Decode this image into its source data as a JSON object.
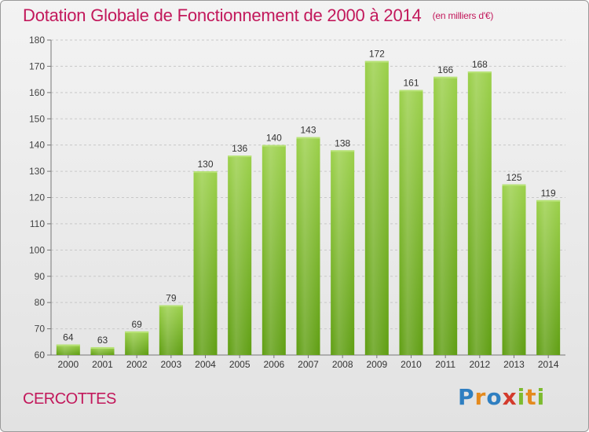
{
  "header": {
    "title": "Dotation Globale de Fonctionnement de 2000 à 2014",
    "unit": "(en milliers d'€)"
  },
  "footer": {
    "commune": "CERCOTTES",
    "logo_text": "Proxiti",
    "logo_icon": "proxiti-logo-icon"
  },
  "colors": {
    "title": "#c2185b",
    "bar_light": "#9bd04a",
    "bar_dark": "#5f9e12",
    "grid": "#c8c8c8"
  },
  "chart_data": {
    "type": "bar",
    "title": "Dotation Globale de Fonctionnement de 2000 à 2014",
    "subtitle": "(en milliers d'€)",
    "xlabel": "",
    "ylabel": "",
    "categories": [
      "2000",
      "2001",
      "2002",
      "2003",
      "2004",
      "2005",
      "2006",
      "2007",
      "2008",
      "2009",
      "2010",
      "2011",
      "2012",
      "2013",
      "2014"
    ],
    "values": [
      64,
      63,
      69,
      79,
      130,
      136,
      140,
      143,
      138,
      172,
      161,
      166,
      168,
      125,
      119
    ],
    "ylim": [
      60,
      180
    ],
    "yticks": [
      60,
      70,
      80,
      90,
      100,
      110,
      120,
      130,
      140,
      150,
      160,
      170,
      180
    ],
    "grid": true,
    "data_labels": true
  }
}
